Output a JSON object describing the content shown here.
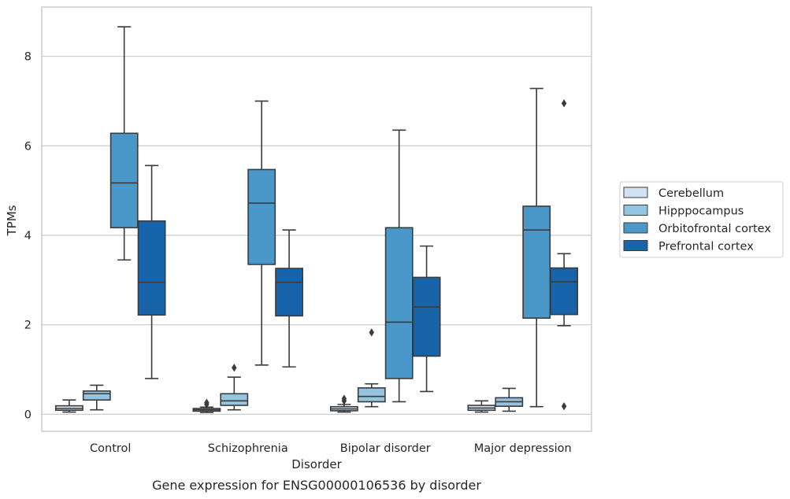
{
  "chart_data": {
    "type": "box",
    "caption": "Gene expression for ENSG00000106536 by disorder",
    "xlabel": "Disorder",
    "ylabel": "TPMs",
    "ylim": [
      -0.38,
      9.1
    ],
    "yticks": [
      "0",
      "2",
      "4",
      "6",
      "8"
    ],
    "grid": true,
    "legend_position": "right",
    "categories": [
      "Control",
      "Schizophrenia",
      "Bipolar disorder",
      "Major depression"
    ],
    "series": [
      {
        "name": "Cerebellum",
        "color": "#d0e1f2",
        "boxes": [
          {
            "whislo": 0.05,
            "q1": 0.09,
            "med": 0.13,
            "q3": 0.19,
            "whishi": 0.32,
            "fliers": []
          },
          {
            "whislo": 0.04,
            "q1": 0.07,
            "med": 0.1,
            "q3": 0.13,
            "whishi": 0.16,
            "fliers": [
              0.22,
              0.26
            ]
          },
          {
            "whislo": 0.05,
            "q1": 0.08,
            "med": 0.12,
            "q3": 0.17,
            "whishi": 0.22,
            "fliers": [
              0.3,
              0.35
            ]
          },
          {
            "whislo": 0.05,
            "q1": 0.09,
            "med": 0.14,
            "q3": 0.2,
            "whishi": 0.3,
            "fliers": []
          }
        ]
      },
      {
        "name": "Hipppocampus",
        "color": "#94c4df",
        "boxes": [
          {
            "whislo": 0.1,
            "q1": 0.32,
            "med": 0.46,
            "q3": 0.52,
            "whishi": 0.65,
            "fliers": []
          },
          {
            "whislo": 0.1,
            "q1": 0.2,
            "med": 0.3,
            "q3": 0.46,
            "whishi": 0.83,
            "fliers": [
              1.04
            ]
          },
          {
            "whislo": 0.17,
            "q1": 0.28,
            "med": 0.4,
            "q3": 0.59,
            "whishi": 0.68,
            "fliers": [
              1.83
            ]
          },
          {
            "whislo": 0.07,
            "q1": 0.18,
            "med": 0.28,
            "q3": 0.37,
            "whishi": 0.58,
            "fliers": []
          }
        ]
      },
      {
        "name": "Orbitofrontal cortex",
        "color": "#4a98c9",
        "boxes": [
          {
            "whislo": 3.45,
            "q1": 4.17,
            "med": 5.17,
            "q3": 6.28,
            "whishi": 8.66,
            "fliers": []
          },
          {
            "whislo": 1.1,
            "q1": 3.35,
            "med": 4.72,
            "q3": 5.47,
            "whishi": 7.0,
            "fliers": []
          },
          {
            "whislo": 0.28,
            "q1": 0.8,
            "med": 2.06,
            "q3": 4.17,
            "whishi": 6.35,
            "fliers": []
          },
          {
            "whislo": 0.17,
            "q1": 2.15,
            "med": 4.12,
            "q3": 4.65,
            "whishi": 7.28,
            "fliers": []
          }
        ]
      },
      {
        "name": "Prefrontal cortex",
        "color": "#1764ab",
        "boxes": [
          {
            "whislo": 0.8,
            "q1": 2.22,
            "med": 2.95,
            "q3": 4.32,
            "whishi": 5.56,
            "fliers": []
          },
          {
            "whislo": 1.06,
            "q1": 2.2,
            "med": 2.95,
            "q3": 3.26,
            "whishi": 4.12,
            "fliers": []
          },
          {
            "whislo": 0.51,
            "q1": 1.3,
            "med": 2.4,
            "q3": 3.06,
            "whishi": 3.76,
            "fliers": []
          },
          {
            "whislo": 1.98,
            "q1": 2.23,
            "med": 2.96,
            "q3": 3.27,
            "whishi": 3.59,
            "fliers": [
              0.18,
              6.95
            ]
          }
        ]
      }
    ]
  }
}
